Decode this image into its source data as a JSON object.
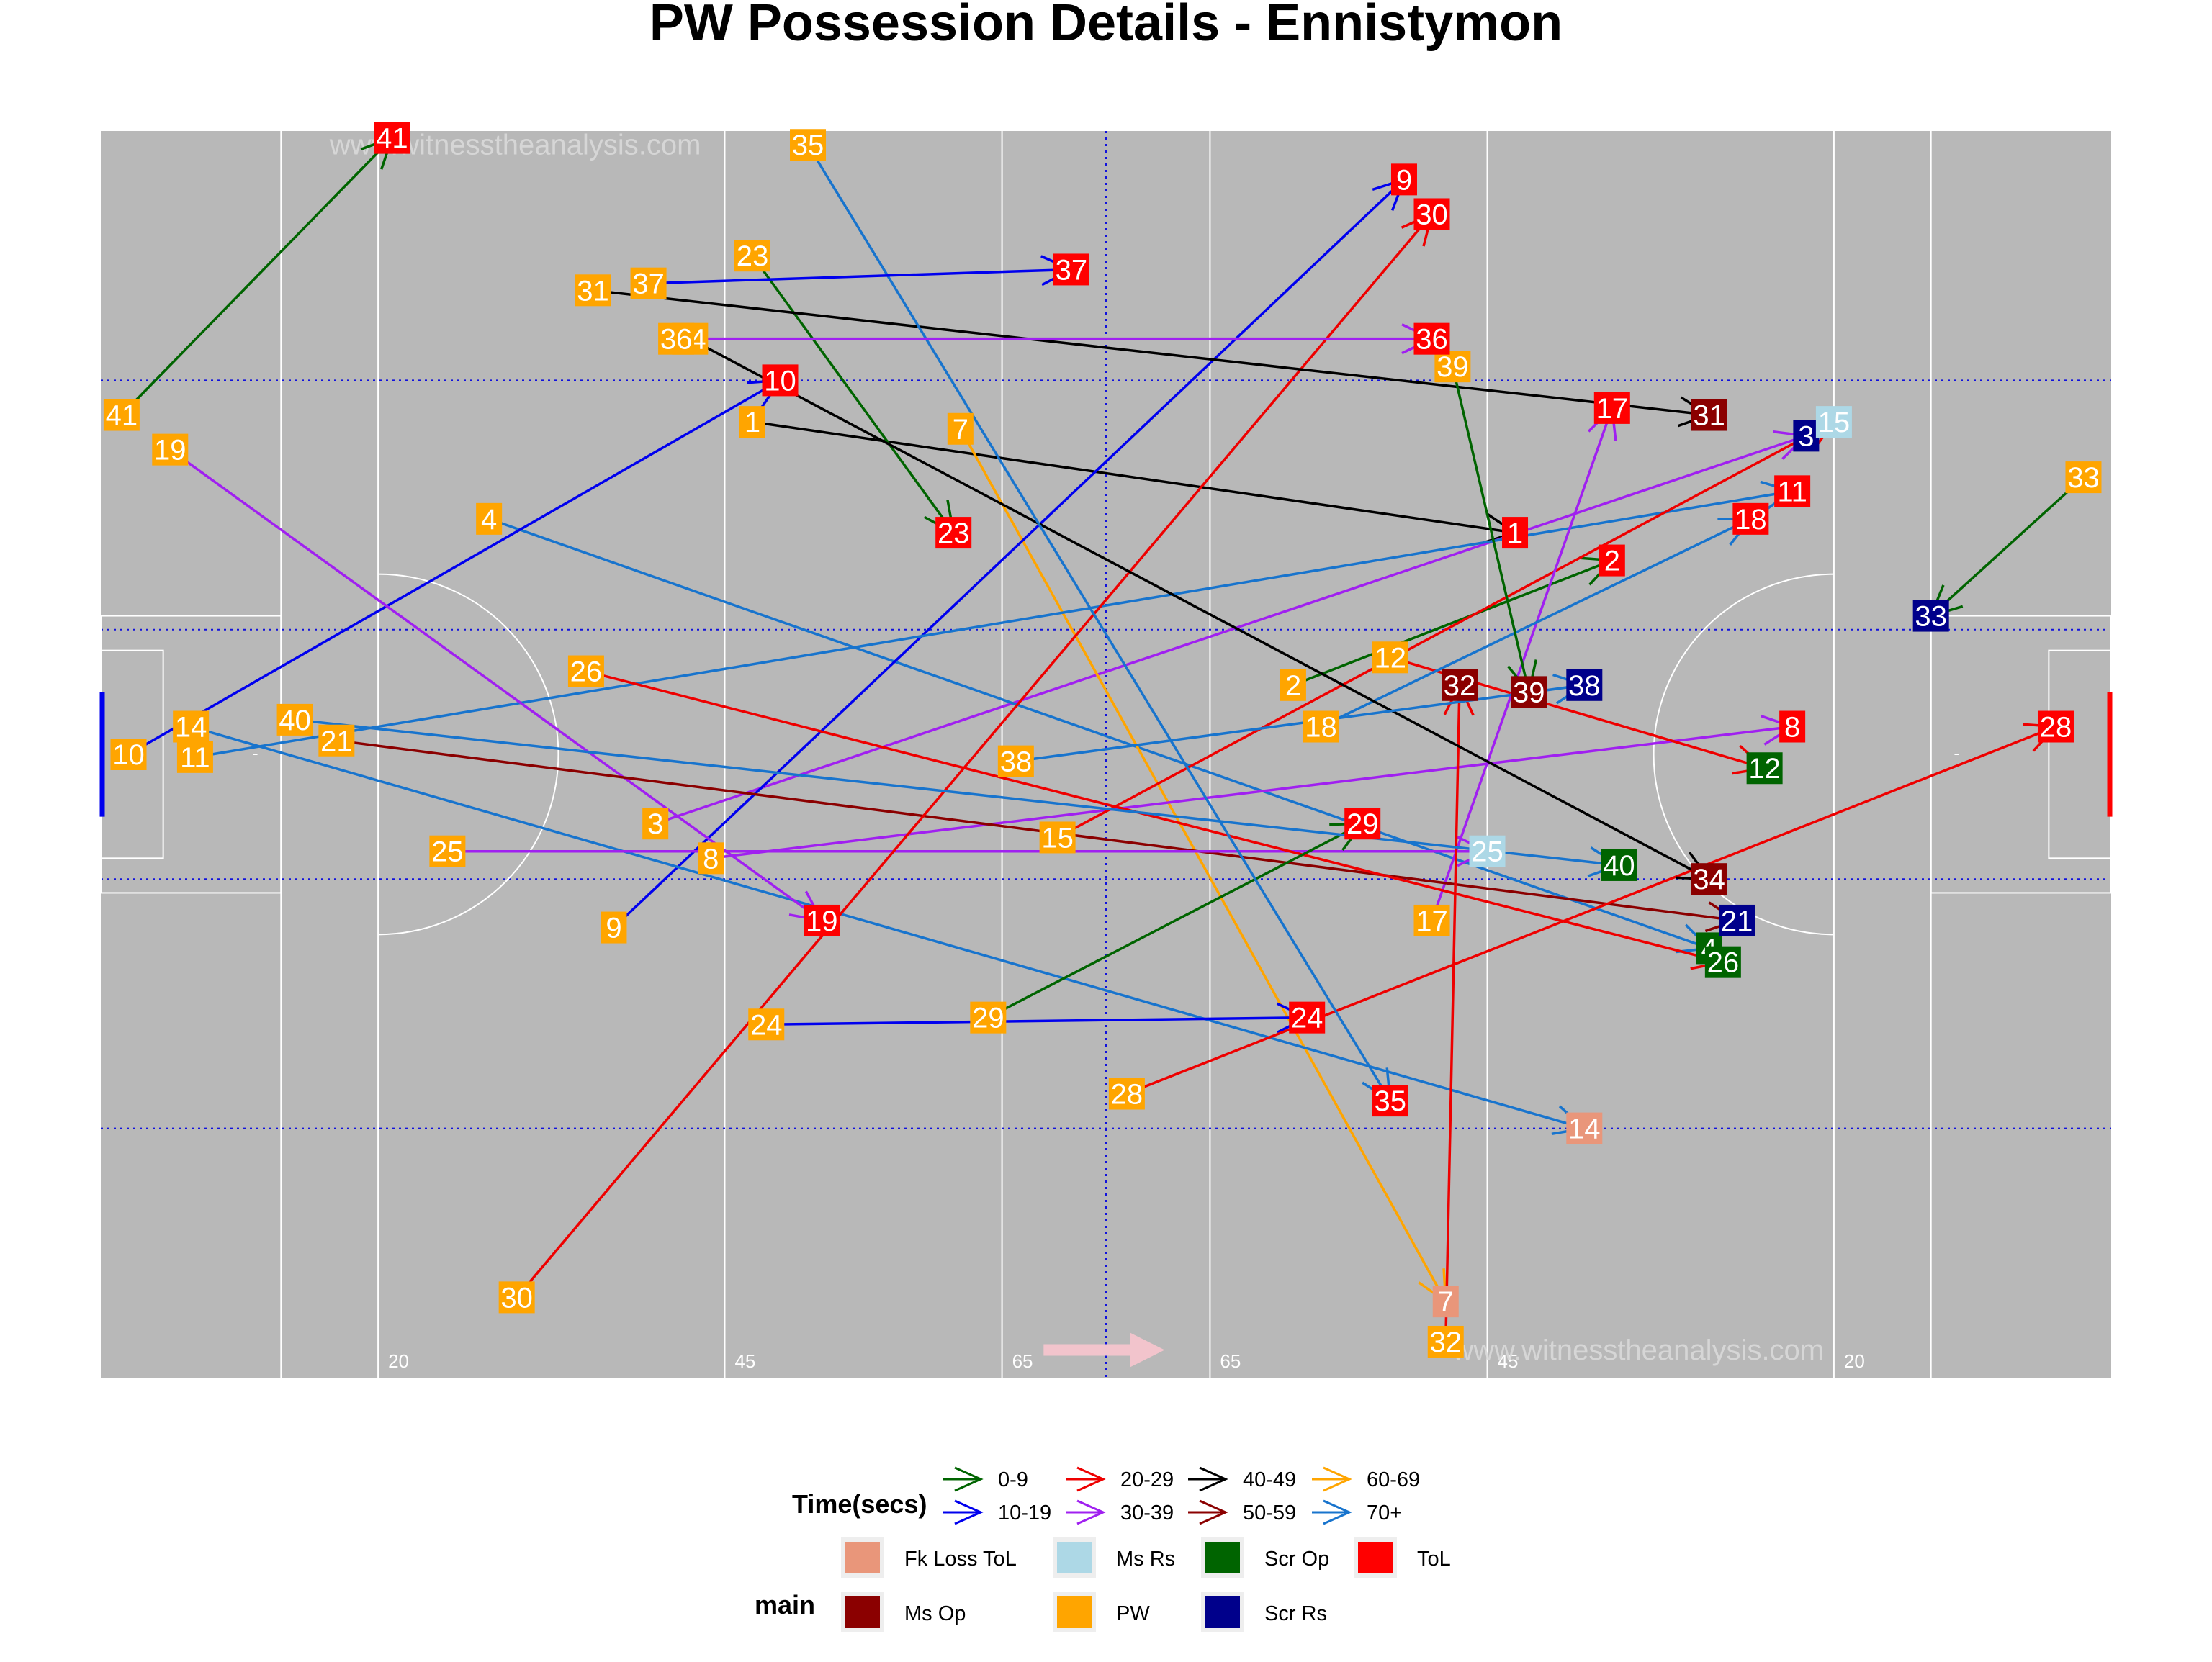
{
  "chart_data": {
    "type": "scatter",
    "title": "PW Possession Details - Ennistymon",
    "watermark": "www.witnesstheanalysis.com",
    "xlim": [
      0,
      145
    ],
    "ylim": [
      0,
      90
    ],
    "pitch_markers": [
      {
        "x": 20,
        "label": "20"
      },
      {
        "x": 45,
        "label": "45"
      },
      {
        "x": 65,
        "label": "65"
      },
      {
        "x": 80,
        "label": "65"
      },
      {
        "x": 100,
        "label": "45"
      },
      {
        "x": 125,
        "label": "20"
      }
    ],
    "colors": {
      "pitch": "#b8b8b8",
      "time": {
        "0-9": "#006400",
        "10-19": "#0000ee",
        "20-29": "#ee0000",
        "30-39": "#a020f0",
        "40-49": "#000000",
        "50-59": "#8b0000",
        "60-69": "#ffa500",
        "70+": "#1874cd"
      },
      "main": {
        "Fk Loss ToL": "#e9967a",
        "Ms Op": "#8b0000",
        "Ms Rs": "#add8e6",
        "PW": "#ffa500",
        "Scr Op": "#006400",
        "Scr Rs": "#00008b",
        "ToL": "#ff0000"
      }
    },
    "legend": {
      "time_title": "Time(secs)",
      "time_bins": [
        "0-9",
        "10-19",
        "20-29",
        "30-39",
        "40-49",
        "50-59",
        "60-69",
        "70+"
      ],
      "main_title": "main",
      "main_items": [
        "Fk Loss ToL",
        "Ms Op",
        "Ms Rs",
        "PW",
        "Scr Op",
        "Scr Rs",
        "ToL"
      ],
      "placement": "bottom"
    },
    "possessions": [
      {
        "id": "1",
        "time": "40-49",
        "start": {
          "x": 47,
          "y": 69,
          "main": "PW"
        },
        "end": {
          "x": 102,
          "y": 61,
          "main": "ToL"
        }
      },
      {
        "id": "2",
        "time": "0-9",
        "start": {
          "x": 86,
          "y": 50,
          "main": "PW"
        },
        "end": {
          "x": 109,
          "y": 59,
          "main": "ToL"
        }
      },
      {
        "id": "3",
        "time": "30-39",
        "start": {
          "x": 40,
          "y": 40,
          "main": "PW"
        },
        "end": {
          "x": 123,
          "y": 68,
          "main": "Scr Rs"
        }
      },
      {
        "id": "4",
        "time": "70+",
        "start": {
          "x": 28,
          "y": 62,
          "main": "PW"
        },
        "end": {
          "x": 116,
          "y": 31,
          "main": "Scr Op"
        }
      },
      {
        "id": "7",
        "time": "60-69",
        "start": {
          "x": 62,
          "y": 68.5,
          "main": "PW"
        },
        "end": {
          "x": 97,
          "y": 5.5,
          "main": "Fk Loss ToL"
        }
      },
      {
        "id": "8",
        "time": "30-39",
        "start": {
          "x": 44,
          "y": 37.5,
          "main": "PW"
        },
        "end": {
          "x": 122,
          "y": 47,
          "main": "ToL"
        }
      },
      {
        "id": "9",
        "time": "10-19",
        "start": {
          "x": 37,
          "y": 32.5,
          "main": "PW"
        },
        "end": {
          "x": 94,
          "y": 86.5,
          "main": "ToL"
        }
      },
      {
        "id": "10",
        "time": "10-19",
        "start": {
          "x": 2,
          "y": 45,
          "main": "PW"
        },
        "end": {
          "x": 49,
          "y": 72,
          "main": "ToL"
        }
      },
      {
        "id": "11",
        "time": "70+",
        "start": {
          "x": 6.8,
          "y": 44.8,
          "main": "PW"
        },
        "end": {
          "x": 122,
          "y": 64,
          "main": "ToL"
        }
      },
      {
        "id": "12",
        "time": "20-29",
        "start": {
          "x": 93,
          "y": 52,
          "main": "PW"
        },
        "end": {
          "x": 120,
          "y": 44,
          "main": "Scr Op"
        }
      },
      {
        "id": "14",
        "time": "70+",
        "start": {
          "x": 6.5,
          "y": 47,
          "main": "PW"
        },
        "end": {
          "x": 107,
          "y": 18,
          "main": "Fk Loss ToL"
        }
      },
      {
        "id": "15",
        "time": "20-29",
        "start": {
          "x": 69,
          "y": 39,
          "main": "PW"
        },
        "end": {
          "x": 125,
          "y": 69,
          "main": "Ms Rs"
        }
      },
      {
        "id": "17",
        "time": "30-39",
        "start": {
          "x": 96,
          "y": 33,
          "main": "PW"
        },
        "end": {
          "x": 109,
          "y": 70,
          "main": "ToL"
        }
      },
      {
        "id": "18",
        "time": "70+",
        "start": {
          "x": 88,
          "y": 47,
          "main": "PW"
        },
        "end": {
          "x": 119,
          "y": 62,
          "main": "ToL"
        }
      },
      {
        "id": "19",
        "time": "30-39",
        "start": {
          "x": 5,
          "y": 67,
          "main": "PW"
        },
        "end": {
          "x": 52,
          "y": 33,
          "main": "ToL"
        }
      },
      {
        "id": "21",
        "time": "50-59",
        "start": {
          "x": 17,
          "y": 46,
          "main": "PW"
        },
        "end": {
          "x": 118,
          "y": 33,
          "main": "Scr Rs"
        }
      },
      {
        "id": "23",
        "time": "0-9",
        "start": {
          "x": 47,
          "y": 81,
          "main": "PW"
        },
        "end": {
          "x": 61.5,
          "y": 61,
          "main": "ToL"
        }
      },
      {
        "id": "24",
        "time": "10-19",
        "start": {
          "x": 48,
          "y": 25.5,
          "main": "PW"
        },
        "end": {
          "x": 87,
          "y": 26,
          "main": "ToL"
        }
      },
      {
        "id": "25",
        "time": "30-39",
        "start": {
          "x": 25,
          "y": 38,
          "main": "PW"
        },
        "end": {
          "x": 100,
          "y": 38,
          "main": "Ms Rs"
        }
      },
      {
        "id": "26",
        "time": "20-29",
        "start": {
          "x": 35,
          "y": 51,
          "main": "PW"
        },
        "end": {
          "x": 117,
          "y": 30,
          "main": "Scr Op"
        }
      },
      {
        "id": "28",
        "time": "20-29",
        "start": {
          "x": 74,
          "y": 20.5,
          "main": "PW"
        },
        "end": {
          "x": 141,
          "y": 47,
          "main": "ToL"
        }
      },
      {
        "id": "29",
        "time": "0-9",
        "start": {
          "x": 64,
          "y": 26,
          "main": "PW"
        },
        "end": {
          "x": 91,
          "y": 40,
          "main": "ToL"
        }
      },
      {
        "id": "30",
        "time": "20-29",
        "start": {
          "x": 30,
          "y": 5.8,
          "main": "PW"
        },
        "end": {
          "x": 96,
          "y": 84,
          "main": "ToL"
        }
      },
      {
        "id": "31",
        "time": "40-49",
        "start": {
          "x": 35.5,
          "y": 78.5,
          "main": "PW"
        },
        "end": {
          "x": 116,
          "y": 69.5,
          "main": "Ms Op"
        }
      },
      {
        "id": "32",
        "time": "20-29",
        "start": {
          "x": 97,
          "y": 2.6,
          "main": "PW"
        },
        "end": {
          "x": 98,
          "y": 50,
          "main": "Ms Op"
        }
      },
      {
        "id": "33",
        "time": "0-9",
        "start": {
          "x": 143,
          "y": 65,
          "main": "PW"
        },
        "end": {
          "x": 132,
          "y": 55,
          "main": "Scr Rs"
        }
      },
      {
        "id": "34",
        "time": "40-49",
        "start": {
          "x": 42.5,
          "y": 75,
          "main": "PW"
        },
        "end": {
          "x": 116,
          "y": 36,
          "main": "Ms Op"
        }
      },
      {
        "id": "35",
        "time": "70+",
        "start": {
          "x": 51,
          "y": 89,
          "main": "PW"
        },
        "end": {
          "x": 93,
          "y": 20,
          "main": "ToL"
        }
      },
      {
        "id": "36",
        "time": "30-39",
        "start": {
          "x": 41.5,
          "y": 75,
          "main": "PW"
        },
        "end": {
          "x": 96,
          "y": 75,
          "main": "ToL"
        }
      },
      {
        "id": "37",
        "time": "10-19",
        "start": {
          "x": 39.5,
          "y": 79,
          "main": "PW"
        },
        "end": {
          "x": 70,
          "y": 80,
          "main": "ToL"
        }
      },
      {
        "id": "38",
        "time": "70+",
        "start": {
          "x": 66,
          "y": 44.5,
          "main": "PW"
        },
        "end": {
          "x": 107,
          "y": 50,
          "main": "Scr Rs"
        }
      },
      {
        "id": "39",
        "time": "0-9",
        "start": {
          "x": 97.5,
          "y": 73,
          "main": "PW"
        },
        "end": {
          "x": 103,
          "y": 49.5,
          "main": "Ms Op"
        }
      },
      {
        "id": "40",
        "time": "70+",
        "start": {
          "x": 14,
          "y": 47.5,
          "main": "PW"
        },
        "end": {
          "x": 109.5,
          "y": 37,
          "main": "Scr Op"
        }
      },
      {
        "id": "41",
        "time": "0-9",
        "start": {
          "x": 1.5,
          "y": 69.5,
          "main": "PW"
        },
        "end": {
          "x": 21,
          "y": 89.5,
          "main": "ToL"
        }
      }
    ]
  }
}
